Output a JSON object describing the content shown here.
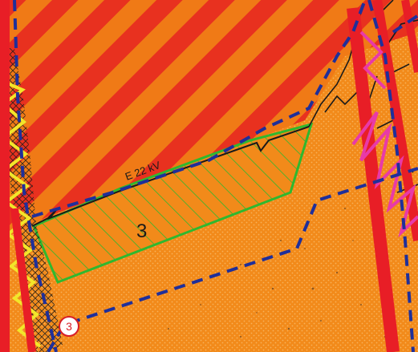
{
  "map": {
    "zone_label": "3",
    "marker_label": "3",
    "line_label": "E 22 kV",
    "colors": {
      "background": "#f28a1a",
      "stripe": "#e8311f",
      "red_band": "#e81e26",
      "dashed_boundary": "#1f2f9a",
      "hatch_zone": "#2fb82f",
      "magenta_zigzag": "#e83aa8",
      "yellow_zigzag": "#f2e62a",
      "black_lines": "#1a1a1a",
      "marker_fill": "#ffffff",
      "marker_text": "#d81e26"
    }
  }
}
